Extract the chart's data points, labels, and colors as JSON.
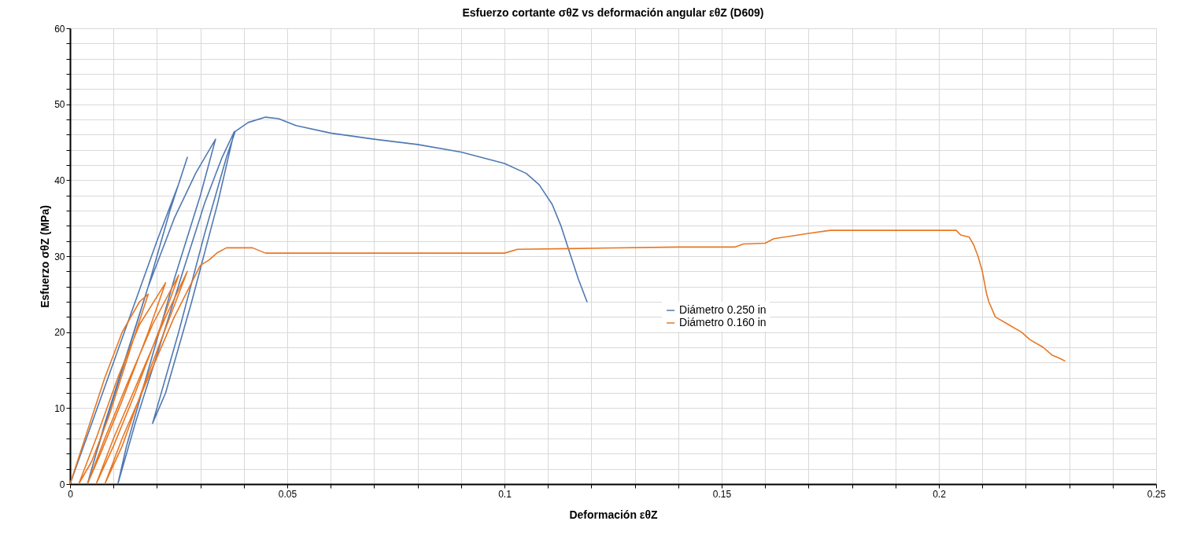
{
  "chart_data": {
    "type": "line",
    "title": "Esfuerzo cortante σθZ vs deformación angular εθZ (D609)",
    "xlabel": "Deformación εθZ",
    "ylabel": "Esfuerzo  σθZ (MPa)",
    "xlim": [
      0,
      0.25
    ],
    "ylim": [
      0,
      60
    ],
    "xticks": [
      0,
      {
        "value": 0.01,
        "label": null
      },
      {
        "value": 0.02,
        "label": null
      },
      {
        "value": 0.03,
        "label": null
      },
      {
        "value": 0.04,
        "label": null
      },
      0.05,
      {
        "value": 0.06,
        "label": null
      },
      {
        "value": 0.07,
        "label": null
      },
      {
        "value": 0.08,
        "label": null
      },
      {
        "value": 0.09,
        "label": null
      },
      0.1,
      {
        "value": 0.11,
        "label": null
      },
      {
        "value": 0.12,
        "label": null
      },
      {
        "value": 0.13,
        "label": null
      },
      {
        "value": 0.14,
        "label": null
      },
      0.15,
      {
        "value": 0.16,
        "label": null
      },
      {
        "value": 0.17,
        "label": null
      },
      {
        "value": 0.18,
        "label": null
      },
      {
        "value": 0.19,
        "label": null
      },
      0.2,
      {
        "value": 0.21,
        "label": null
      },
      {
        "value": 0.22,
        "label": null
      },
      {
        "value": 0.23,
        "label": null
      },
      {
        "value": 0.24,
        "label": null
      },
      0.25
    ],
    "yticks": [
      0,
      {
        "value": 2,
        "label": null
      },
      {
        "value": 4,
        "label": null
      },
      {
        "value": 6,
        "label": null
      },
      {
        "value": 8,
        "label": null
      },
      10,
      {
        "value": 12,
        "label": null
      },
      {
        "value": 14,
        "label": null
      },
      {
        "value": 16,
        "label": null
      },
      {
        "value": 18,
        "label": null
      },
      20,
      {
        "value": 22,
        "label": null
      },
      {
        "value": 24,
        "label": null
      },
      {
        "value": 26,
        "label": null
      },
      {
        "value": 28,
        "label": null
      },
      30,
      {
        "value": 32,
        "label": null
      },
      {
        "value": 34,
        "label": null
      },
      {
        "value": 36,
        "label": null
      },
      {
        "value": 38,
        "label": null
      },
      40,
      {
        "value": 42,
        "label": null
      },
      {
        "value": 44,
        "label": null
      },
      {
        "value": 46,
        "label": null
      },
      {
        "value": 48,
        "label": null
      },
      50,
      {
        "value": 52,
        "label": null
      },
      {
        "value": 54,
        "label": null
      },
      {
        "value": 56,
        "label": null
      },
      {
        "value": 58,
        "label": null
      },
      60
    ],
    "grid": true,
    "legend": "right",
    "line_style": "solid",
    "series": [
      {
        "name": "Diámetro 0.250 in",
        "color": "#4f79b3",
        "x": [
          0,
          0.005,
          0.01,
          0.015,
          0.02,
          0.025,
          0.027,
          0.023,
          0.018,
          0.012,
          0.006,
          0.004,
          0.008,
          0.013,
          0.018,
          0.024,
          0.029,
          0.0335,
          0.03,
          0.024,
          0.018,
          0.013,
          0.011,
          0.015,
          0.02,
          0.026,
          0.031,
          0.035,
          0.0378,
          0.034,
          0.028,
          0.022,
          0.019,
          0.025,
          0.031,
          0.036,
          0.038,
          0.041,
          0.045,
          0.048,
          0.052,
          0.06,
          0.07,
          0.08,
          0.09,
          0.1,
          0.105,
          0.108,
          0.111,
          0.113,
          0.115,
          0.117,
          0.119
        ],
        "values": [
          0,
          8,
          16,
          24,
          32,
          39.5,
          43,
          36,
          26,
          15,
          4,
          0,
          8,
          17,
          26,
          35,
          41,
          45.4,
          38,
          27,
          15,
          5,
          0,
          8,
          17,
          28,
          37,
          43,
          46.4,
          37,
          24,
          12,
          8,
          20,
          33,
          43,
          46.4,
          47.6,
          48.3,
          48.1,
          47.2,
          46.2,
          45.4,
          44.7,
          43.7,
          42.2,
          40.9,
          39.4,
          36.8,
          34,
          30.5,
          27,
          24
        ]
      },
      {
        "name": "Diámetro 0.160 in",
        "color": "#e87722",
        "x": [
          0,
          0.004,
          0.008,
          0.012,
          0.016,
          0.018,
          0.014,
          0.009,
          0.005,
          0.002,
          0.006,
          0.011,
          0.016,
          0.022,
          0.018,
          0.012,
          0.007,
          0.004,
          0.008,
          0.013,
          0.019,
          0.025,
          0.021,
          0.015,
          0.01,
          0.006,
          0.01,
          0.016,
          0.022,
          0.027,
          0.023,
          0.017,
          0.012,
          0.008,
          0.012,
          0.018,
          0.024,
          0.03,
          0.032,
          0.034,
          0.036,
          0.042,
          0.045,
          0.05,
          0.1,
          0.103,
          0.115,
          0.14,
          0.153,
          0.155,
          0.16,
          0.162,
          0.17,
          0.175,
          0.204,
          0.205,
          0.207,
          0.208,
          0.209,
          0.21,
          0.211,
          0.2115,
          0.213,
          0.216,
          0.219,
          0.221,
          0.224,
          0.226,
          0.228,
          0.229
        ],
        "values": [
          0,
          7,
          14,
          20,
          24,
          25,
          18,
          9,
          3,
          0,
          6,
          14,
          21,
          26.5,
          20,
          11,
          4,
          0,
          6,
          13,
          21,
          27.5,
          21,
          12,
          5,
          0,
          6,
          14,
          22,
          28,
          22,
          13,
          5,
          0,
          6,
          14,
          22,
          28.8,
          29.5,
          30.5,
          31.1,
          31.1,
          30.4,
          30.4,
          30.4,
          30.9,
          31,
          31.2,
          31.2,
          31.6,
          31.7,
          32.3,
          33,
          33.4,
          33.4,
          32.8,
          32.5,
          31.5,
          30,
          28,
          25,
          24,
          22,
          21,
          20,
          19,
          18,
          17,
          16.5,
          16.2
        ]
      }
    ]
  }
}
